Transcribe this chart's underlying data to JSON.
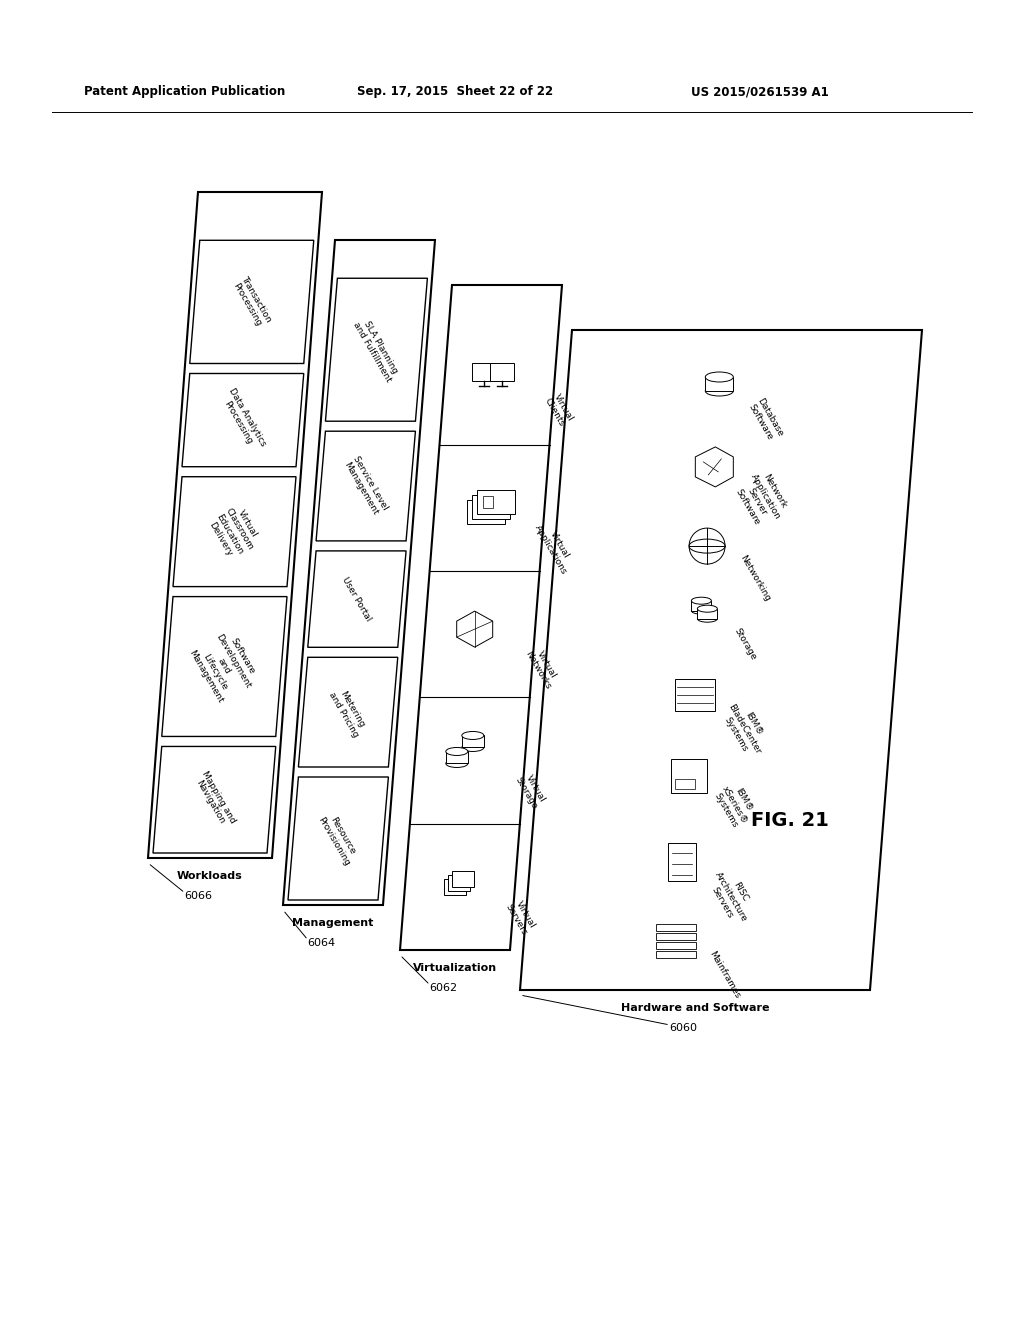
{
  "header_left": "Patent Application Publication",
  "header_center": "Sep. 17, 2015  Sheet 22 of 22",
  "header_right": "US 2015/0261539 A1",
  "fig_label": "FIG. 21",
  "bg_color": "#ffffff",
  "workload_items": [
    "Mapping and\nNavigation",
    "Software\nDevelopment\nand\nLifecycle\nManagement",
    "Virtual\nClassroom\nEducation\nDelivery",
    "Data Analytics\nProcessing",
    "Transaction\nProcessing"
  ],
  "management_items": [
    "Resource\nProvisioning",
    "Metering\nand Pricing",
    "User Portal",
    "Service Level\nManagement",
    "SLA Planning\nand Fulfillment"
  ],
  "virtualization_items": [
    "Virtual\nServers",
    "Virtual\nStorage",
    "Virtual\nNetworks",
    "Virtual\nApplications",
    "Virtual\nClients"
  ],
  "hardware_items": [
    "Mainframes",
    "RISC\nArchitecture\nServers",
    "IBM®\nxSeries®\nSystems",
    "IBM®\nBladeCenter\nSystems",
    "Storage",
    "Networking",
    "Network\nApplication\nServer\nSoftware",
    "Database\nSoftware"
  ],
  "layer_names": [
    "Workloads",
    "Management",
    "Virtualization",
    "Hardware and Software"
  ],
  "layer_numbers": [
    "6066",
    "6064",
    "6062",
    "6060"
  ]
}
